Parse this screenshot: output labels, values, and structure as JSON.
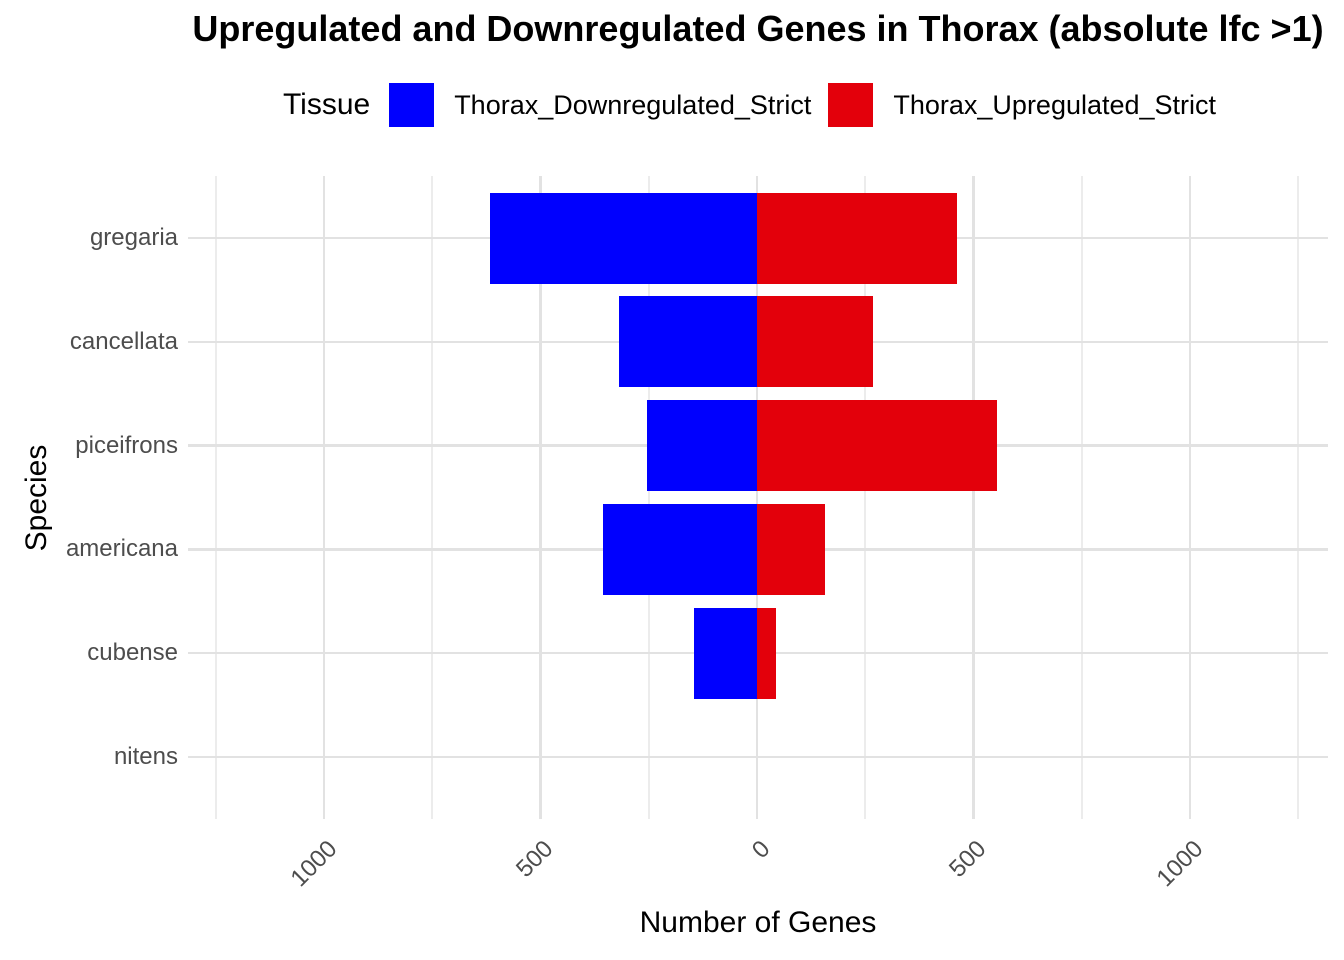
{
  "title": "Upregulated and Downregulated Genes in Thorax (absolute lfc >1)",
  "legend": {
    "title": "Tissue",
    "items": [
      {
        "label": "Thorax_Downregulated_Strict",
        "color": "#0000FE"
      },
      {
        "label": "Thorax_Upregulated_Strict",
        "color": "#E3000B"
      }
    ]
  },
  "chart_data": {
    "type": "bar",
    "orientation": "horizontal-diverging",
    "title": "Upregulated and Downregulated Genes in Thorax (absolute lfc >1)",
    "xlabel": "Number of Genes",
    "ylabel": "Species",
    "categories": [
      "gregaria",
      "cancellata",
      "piceifrons",
      "americana",
      "cubense",
      "nitens"
    ],
    "series": [
      {
        "name": "Thorax_Downregulated_Strict",
        "color": "#0000FE",
        "direction": "negative",
        "values": [
          617,
          318,
          254,
          356,
          146,
          0
        ]
      },
      {
        "name": "Thorax_Upregulated_Strict",
        "color": "#E3000B",
        "direction": "positive",
        "values": [
          463,
          269,
          555,
          157,
          44,
          0
        ]
      }
    ],
    "x_ticks": [
      -1000,
      -500,
      0,
      500,
      1000
    ],
    "x_tick_labels": [
      "1000",
      "500",
      "0",
      "500",
      "1000"
    ],
    "x_minor_ticks": [
      -1250,
      -750,
      -250,
      250,
      750,
      1250
    ],
    "xlim": [
      -1314,
      1319
    ],
    "grid": true,
    "legend_position": "top"
  },
  "colors": {
    "background": "#FFFFFF",
    "grid_major": "#E2E2E2",
    "grid_minor": "#ECECEC",
    "axis_text": "#4D4D4D",
    "text": "#000000"
  }
}
